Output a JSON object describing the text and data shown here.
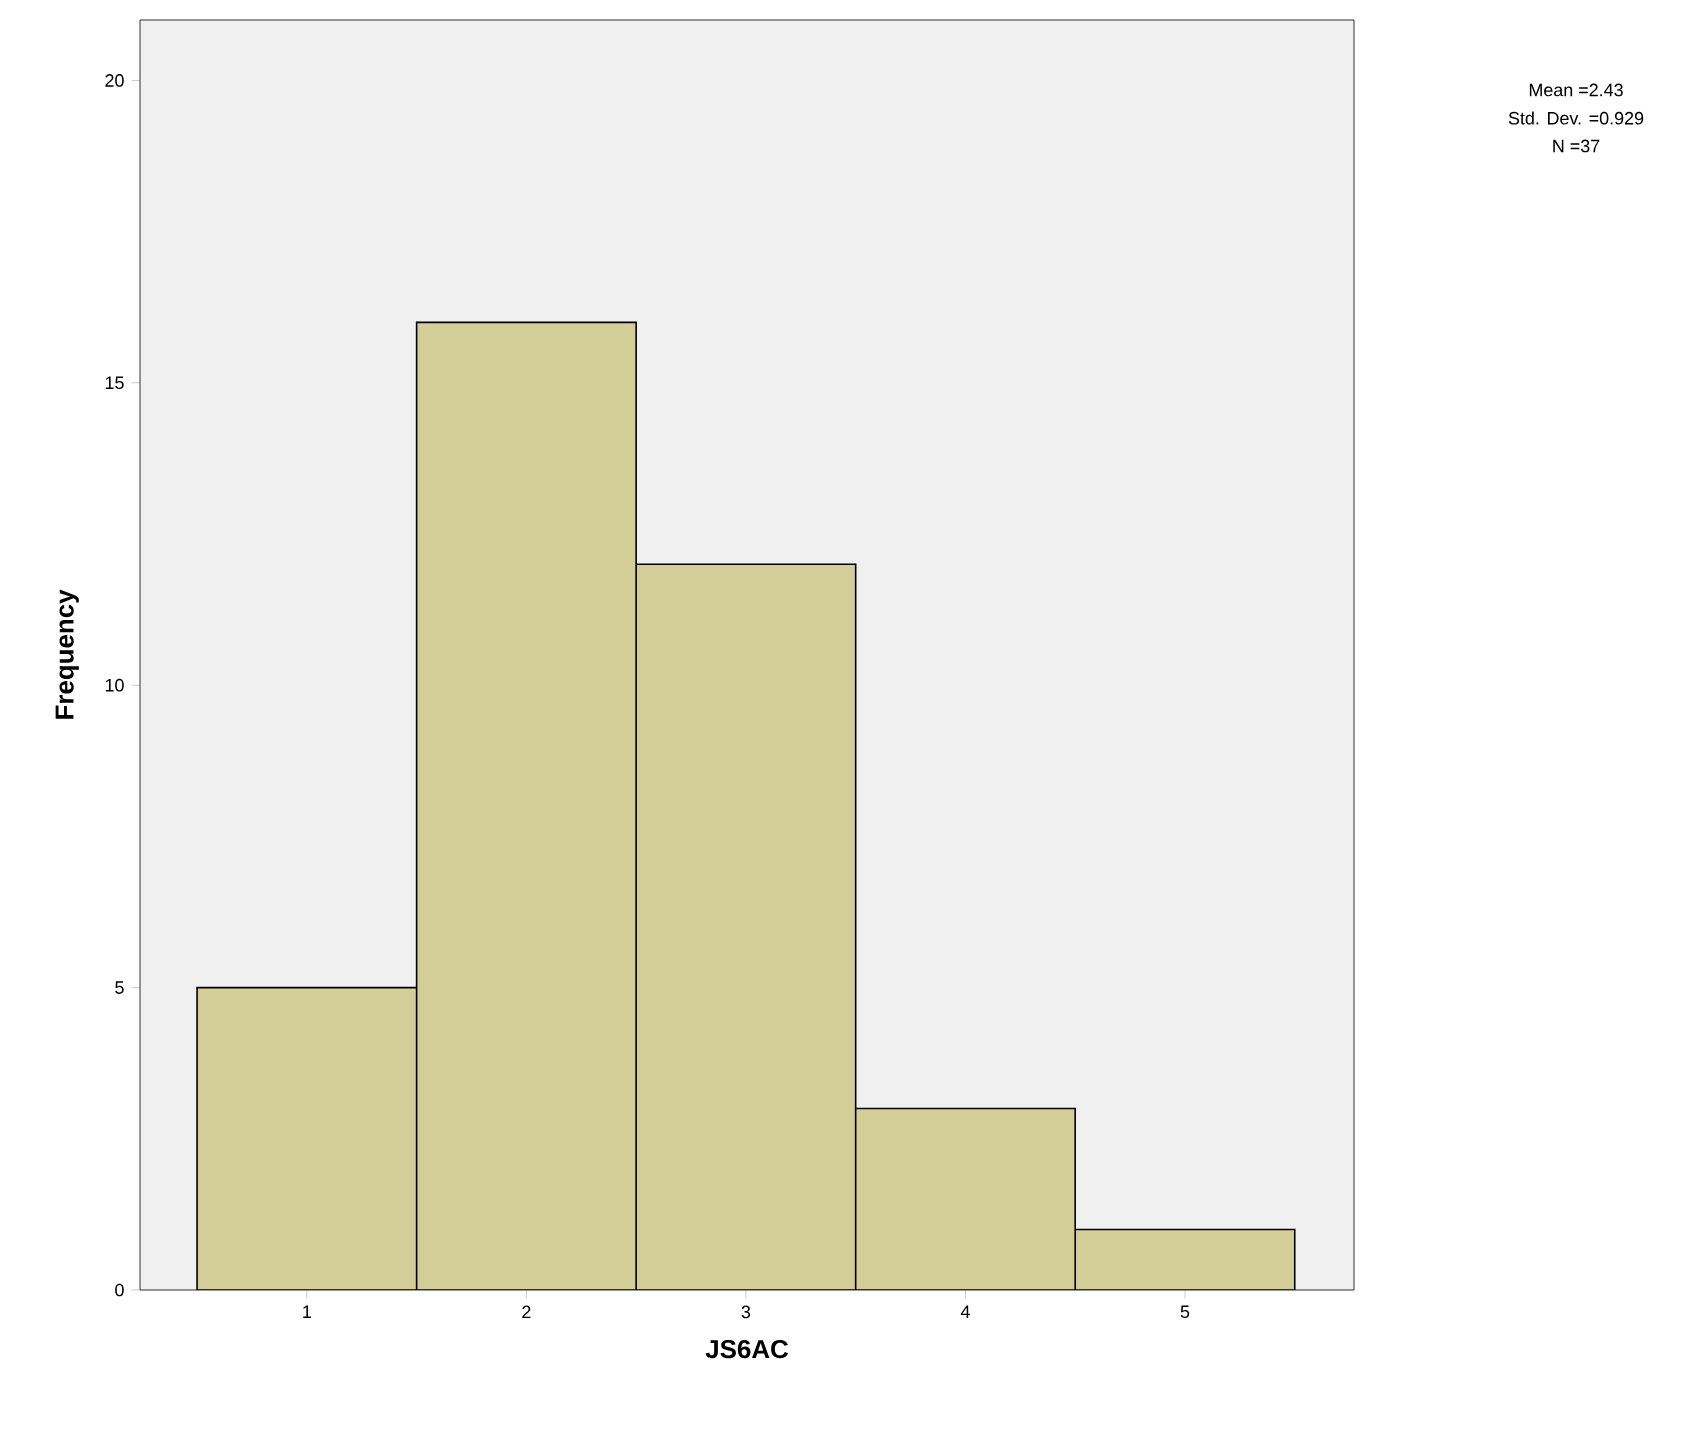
{
  "chart_data": {
    "type": "histogram",
    "xlabel": "JS6AC",
    "ylabel": "Frequency",
    "bins": [
      0.5,
      1.5,
      2.5,
      3.5,
      4.5,
      5.5
    ],
    "values": [
      5,
      16,
      12,
      3,
      1
    ],
    "color": "#d3ce97",
    "xlim": [
      0.24,
      5.77
    ],
    "ylim": [
      0,
      21
    ],
    "xticks": [
      1,
      2,
      3,
      4,
      5
    ],
    "yticks": [
      0,
      5,
      10,
      15,
      20
    ],
    "annotations": [
      "Mean =2.43",
      "Std. Dev. =0.929",
      "N =37"
    ]
  }
}
